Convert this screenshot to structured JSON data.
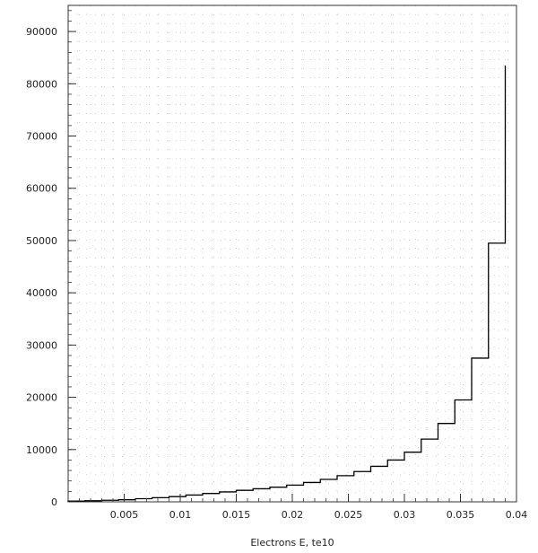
{
  "chart_data": {
    "type": "bar",
    "style": "step-histogram",
    "title": "",
    "xlabel": "Electrons E, te10",
    "ylabel": "",
    "xlim": [
      0,
      0.04
    ],
    "ylim": [
      0,
      95000
    ],
    "grid": "dotted",
    "bin_edges": [
      0.0,
      0.0015,
      0.003,
      0.0045,
      0.006,
      0.0075,
      0.009,
      0.0105,
      0.012,
      0.0135,
      0.015,
      0.0165,
      0.018,
      0.0195,
      0.021,
      0.0225,
      0.024,
      0.0255,
      0.027,
      0.0285,
      0.03,
      0.0315,
      0.033,
      0.0345,
      0.036,
      0.0375,
      0.039
    ],
    "values": [
      150,
      200,
      300,
      400,
      600,
      800,
      1000,
      1300,
      1600,
      1900,
      2200,
      2500,
      2800,
      3200,
      3700,
      4300,
      5000,
      5800,
      6800,
      8000,
      9500,
      12000,
      15000,
      19500,
      27500,
      49500,
      83500
    ],
    "x_ticks": [
      {
        "value": 0.005,
        "label": "0.005"
      },
      {
        "value": 0.01,
        "label": "0.01"
      },
      {
        "value": 0.015,
        "label": "0.015"
      },
      {
        "value": 0.02,
        "label": "0.02"
      },
      {
        "value": 0.025,
        "label": "0.025"
      },
      {
        "value": 0.03,
        "label": "0.03"
      },
      {
        "value": 0.035,
        "label": "0.035"
      },
      {
        "value": 0.04,
        "label": "0.04"
      }
    ],
    "y_ticks": [
      {
        "value": 0,
        "label": "0"
      },
      {
        "value": 10000,
        "label": "10000"
      },
      {
        "value": 20000,
        "label": "20000"
      },
      {
        "value": 30000,
        "label": "30000"
      },
      {
        "value": 40000,
        "label": "40000"
      },
      {
        "value": 50000,
        "label": "50000"
      },
      {
        "value": 60000,
        "label": "60000"
      },
      {
        "value": 70000,
        "label": "70000"
      },
      {
        "value": 80000,
        "label": "80000"
      },
      {
        "value": 90000,
        "label": "90000"
      }
    ],
    "colors": {
      "line": "#000000",
      "grid": "#bbbbbb",
      "frame": "#333333"
    }
  }
}
